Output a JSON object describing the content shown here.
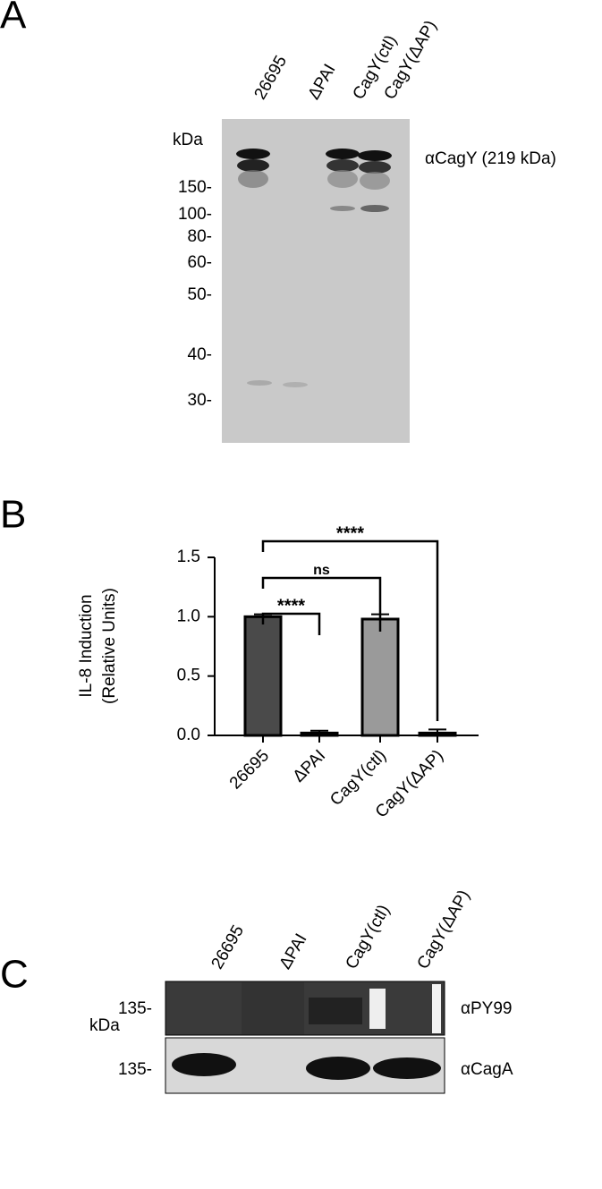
{
  "panel_a": {
    "letter": "A",
    "kda": "kDa",
    "antibody": "αCagY (219 kDa)",
    "lanes": [
      "26695",
      "ΔPAI",
      "CagY(ctl)",
      "CagY(ΔAP)"
    ],
    "markers": [
      "150-",
      "100-",
      "80-",
      "60-",
      "50-",
      "40-",
      "30-"
    ]
  },
  "chart_data": {
    "type": "bar",
    "letter": "B",
    "y_label": [
      "IL-8 Induction",
      "(Relative Units)"
    ],
    "categories": [
      "26695",
      "ΔPAI",
      "CagY(ctl)",
      "CagY(ΔAP)"
    ],
    "values": [
      1.0,
      0.02,
      0.98,
      0.02
    ],
    "errors": [
      0.02,
      0.02,
      0.04,
      0.03
    ],
    "colors": [
      "#4a4a4a",
      "#ffffff",
      "#9a9a9a",
      "#ffffff"
    ],
    "ylim": [
      0,
      1.5
    ],
    "yticks": [
      {
        "value": 0,
        "label": "0.0"
      },
      0.5,
      {
        "value": 1,
        "label": "1.0"
      },
      1.5
    ],
    "annotations": [
      "****",
      "ns",
      "****"
    ]
  },
  "panel_c": {
    "letter": "C",
    "kda": "kDa",
    "lanes": [
      "26695",
      "ΔPAI",
      "CagY(ctl)",
      "CagY(ΔAP)"
    ],
    "markers": [
      "135-",
      "135-"
    ],
    "antibodies": [
      "αPY99",
      "αCagA"
    ]
  }
}
